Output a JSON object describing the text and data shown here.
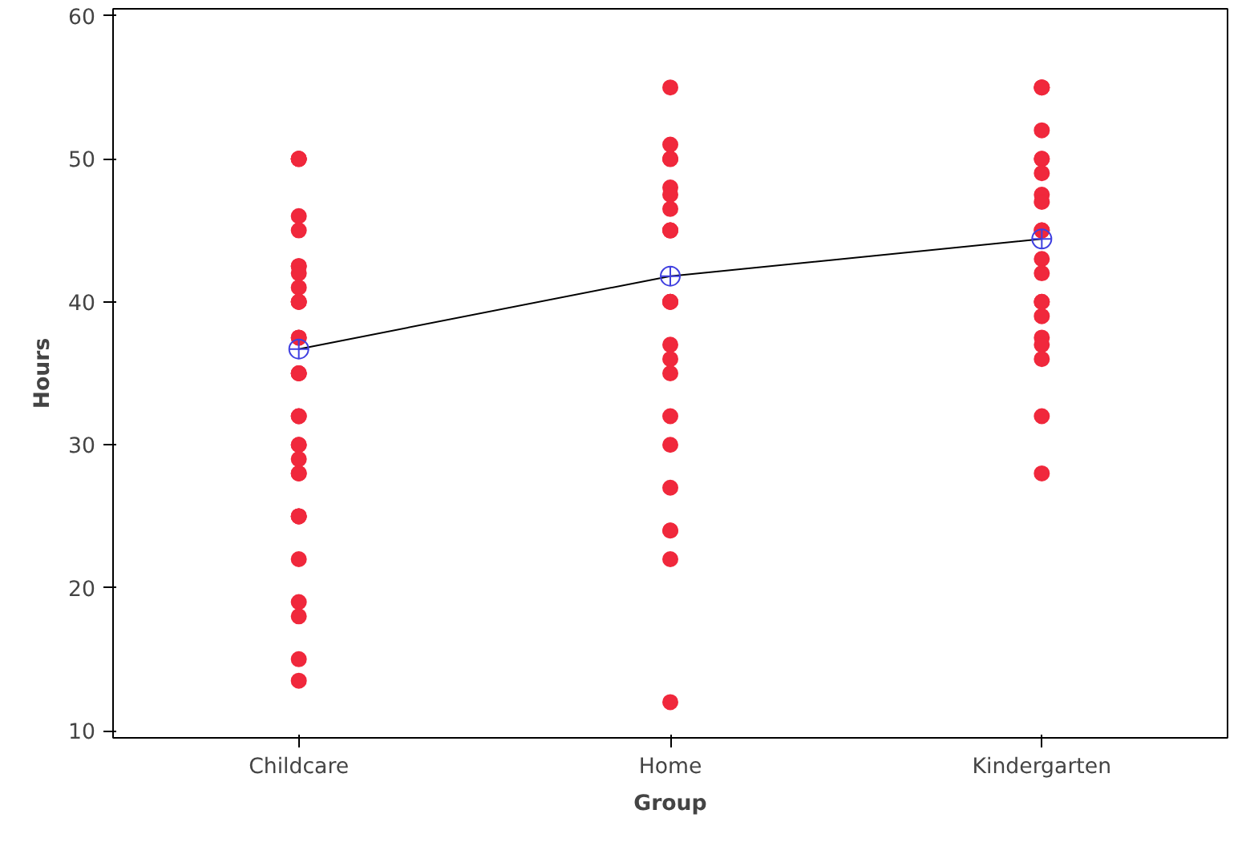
{
  "chart_data": {
    "type": "scatter",
    "xlabel": "Group",
    "ylabel": "Hours",
    "categories": [
      "Childcare",
      "Home",
      "Kindergarten"
    ],
    "ylim": [
      9.5,
      60.5
    ],
    "yticks": [
      10,
      20,
      30,
      40,
      50,
      60
    ],
    "grid": false,
    "series": [
      {
        "marker": "circle",
        "color": "#f0283c",
        "x": [
          "Childcare",
          "Childcare",
          "Childcare",
          "Childcare",
          "Childcare",
          "Childcare",
          "Childcare",
          "Childcare",
          "Childcare",
          "Childcare",
          "Childcare",
          "Childcare",
          "Childcare",
          "Childcare",
          "Childcare",
          "Childcare",
          "Childcare",
          "Childcare",
          "Childcare",
          "Childcare",
          "Childcare",
          "Childcare",
          "Childcare",
          "Childcare",
          "Childcare",
          "Childcare",
          "Childcare",
          "Childcare",
          "Childcare",
          "Childcare",
          "Childcare",
          "Childcare",
          "Childcare",
          "Home",
          "Home",
          "Home",
          "Home",
          "Home",
          "Home",
          "Home",
          "Home",
          "Home",
          "Home",
          "Home",
          "Home",
          "Home",
          "Home",
          "Home",
          "Home",
          "Home",
          "Home",
          "Home",
          "Home",
          "Home",
          "Home",
          "Home",
          "Home",
          "Kindergarten",
          "Kindergarten",
          "Kindergarten",
          "Kindergarten",
          "Kindergarten",
          "Kindergarten",
          "Kindergarten",
          "Kindergarten",
          "Kindergarten",
          "Kindergarten",
          "Kindergarten",
          "Kindergarten",
          "Kindergarten",
          "Kindergarten",
          "Kindergarten",
          "Kindergarten",
          "Kindergarten",
          "Kindergarten",
          "Kindergarten",
          "Kindergarten",
          "Kindergarten"
        ],
        "values": [
          50,
          50,
          50,
          50,
          46,
          45,
          42.5,
          42.5,
          42,
          41,
          40,
          40,
          40,
          37.5,
          37.5,
          35,
          35,
          35,
          32,
          32,
          30,
          30,
          29,
          28,
          28,
          25,
          25,
          25,
          22,
          19,
          18,
          15,
          13.5,
          55,
          51,
          50,
          50,
          50,
          48,
          47.5,
          46.5,
          45,
          45,
          45,
          40,
          40,
          40,
          37,
          36,
          35,
          32,
          30,
          27,
          24,
          24,
          22,
          12,
          55,
          55,
          55,
          52,
          50,
          50,
          49,
          47.5,
          47,
          45,
          45,
          43,
          42,
          40,
          40,
          39,
          37.5,
          37,
          36,
          32,
          28
        ]
      },
      {
        "type": "line",
        "marker": "circle_cross",
        "color": "#4040e0",
        "x": [
          "Childcare",
          "Home",
          "Kindergarten"
        ],
        "values": [
          36.7,
          41.8,
          44.4
        ]
      }
    ]
  }
}
